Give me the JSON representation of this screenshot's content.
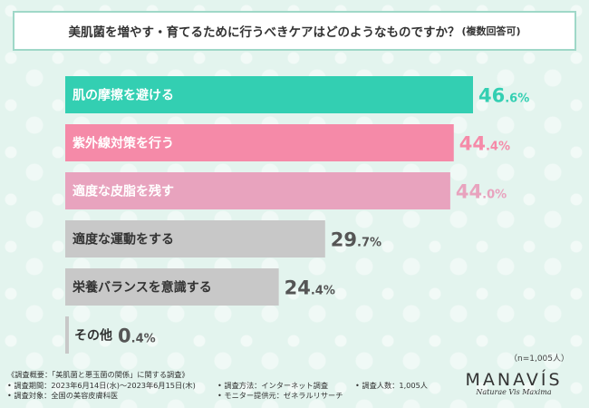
{
  "title": {
    "text": "美肌菌を増やす・育てるために行うべきケアはどのようなものですか？",
    "note": "(複数回答可)"
  },
  "chart_data": {
    "type": "bar",
    "orientation": "horizontal",
    "categories": [
      "肌の摩擦を避ける",
      "紫外線対策を行う",
      "適度な皮脂を残す",
      "適度な運動をする",
      "栄養バランスを意識する",
      "その他"
    ],
    "values": [
      46.6,
      44.4,
      44.0,
      29.7,
      24.4,
      0.4
    ],
    "unit": "%",
    "colors": [
      "#33cfb2",
      "#f58aa8",
      "#e8a3be",
      "#c8c8c8",
      "#c8c8c8",
      "#c8c8c8"
    ],
    "value_colors": [
      "#33cfb2",
      "#f58aa8",
      "#e8a3be",
      "#555555",
      "#555555",
      "#555555"
    ],
    "label_colors": [
      "#ffffff",
      "#ffffff",
      "#ffffff",
      "#333333",
      "#333333",
      "#333333"
    ],
    "xlim": [
      0,
      50
    ]
  },
  "sample_size": "（n=1,005人）",
  "footer": {
    "col1": [
      "《調査概要：「美肌菌と悪玉菌の関係」に関する調査》",
      "• 調査期間：2023年6月14日(水)～2023年6月15日(木)",
      "• 調査対象：全国の美容皮膚科医"
    ],
    "col2": [
      "• 調査方法：インターネット調査",
      "• モニター提供元：ゼネラルリサーチ"
    ],
    "col3": [
      "• 調査人数：1,005人"
    ]
  },
  "logo": {
    "brand": "MANAVÍS",
    "tagline": "Naturae Vis Maxima"
  }
}
